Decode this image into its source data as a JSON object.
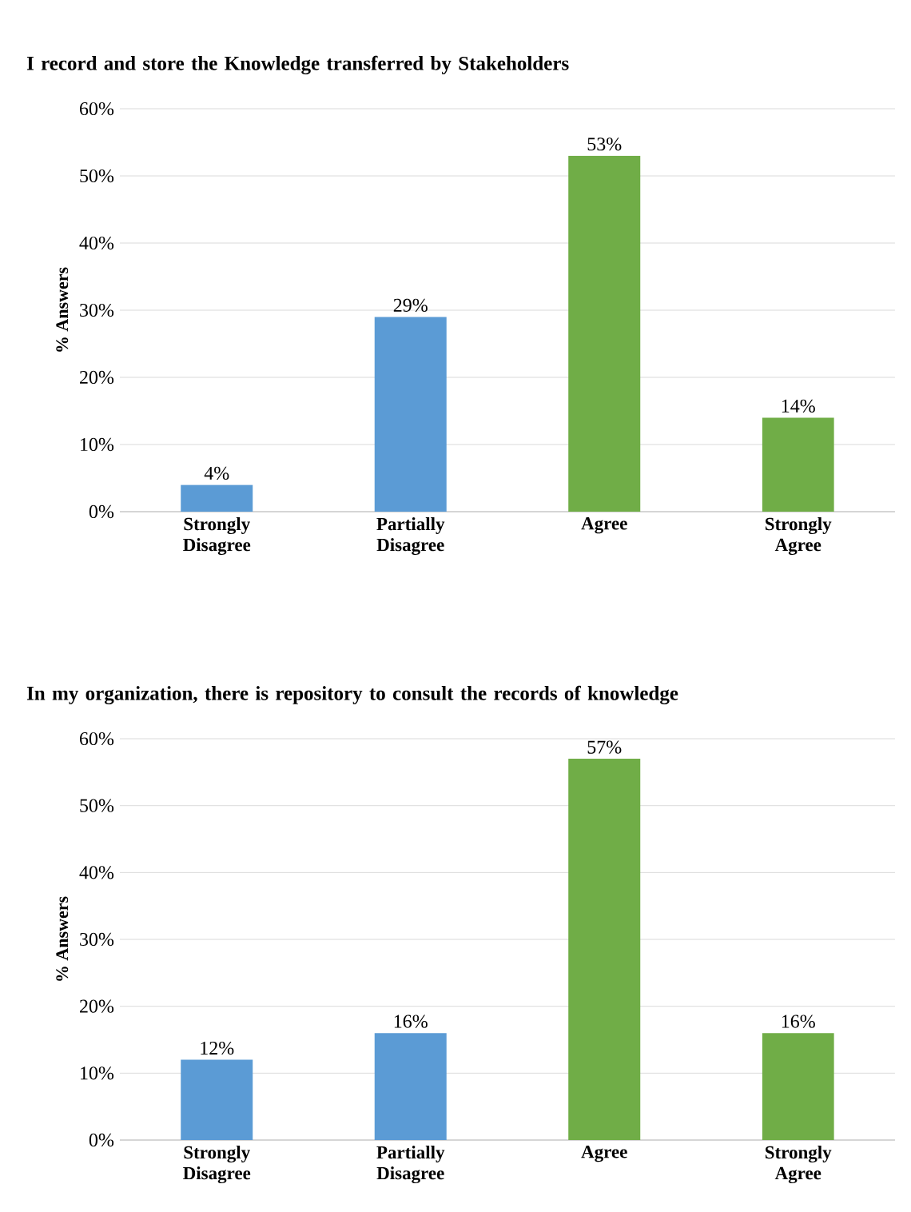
{
  "chart_data": [
    {
      "type": "bar",
      "title": "I record and store the Knowledge transferred by Stakeholders",
      "ylabel": "% Answers",
      "categories": [
        "Strongly Disagree",
        "Partially Disagree",
        "Agree",
        "Strongly Agree"
      ],
      "values": [
        4,
        29,
        53,
        14
      ],
      "value_labels": [
        "4%",
        "29%",
        "53%",
        "14%"
      ],
      "colors": [
        "#5b9bd5",
        "#5b9bd5",
        "#70ad47",
        "#70ad47"
      ],
      "ylim": [
        0,
        60
      ],
      "yticks": [
        {
          "value": 0,
          "label": "0%"
        },
        {
          "value": 10,
          "label": "10%"
        },
        {
          "value": 20,
          "label": "20%"
        },
        {
          "value": 30,
          "label": "30%"
        },
        {
          "value": 40,
          "label": "40%"
        },
        {
          "value": 50,
          "label": "50%"
        },
        {
          "value": 60,
          "label": "60%"
        }
      ],
      "grid": "y"
    },
    {
      "type": "bar",
      "title": "In my organization, there is repository to consult the records of knowledge",
      "ylabel": "% Answers",
      "categories": [
        "Strongly Disagree",
        "Partially Disagree",
        "Agree",
        "Strongly Agree"
      ],
      "values": [
        12,
        16,
        57,
        16
      ],
      "value_labels": [
        "12%",
        "16%",
        "57%",
        "16%"
      ],
      "colors": [
        "#5b9bd5",
        "#5b9bd5",
        "#70ad47",
        "#70ad47"
      ],
      "ylim": [
        0,
        60
      ],
      "yticks": [
        {
          "value": 0,
          "label": "0%"
        },
        {
          "value": 10,
          "label": "10%"
        },
        {
          "value": 20,
          "label": "20%"
        },
        {
          "value": 30,
          "label": "30%"
        },
        {
          "value": 40,
          "label": "40%"
        },
        {
          "value": 50,
          "label": "50%"
        },
        {
          "value": 60,
          "label": "60%"
        }
      ],
      "grid": "y"
    }
  ]
}
